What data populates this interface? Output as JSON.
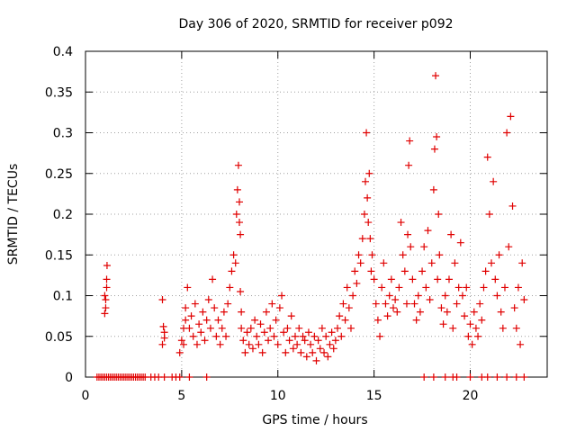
{
  "chart_data": {
    "type": "scatter",
    "title": "Day 306 of 2020, SRMTID for receiver p092",
    "xlabel": "GPS time / hours",
    "ylabel": "SRMTID / TECUs",
    "xlim": [
      0,
      24
    ],
    "ylim": [
      0,
      0.4
    ],
    "grid": true,
    "x_ticks": [
      0,
      5,
      10,
      15,
      20
    ],
    "y_ticks": [
      0,
      0.05,
      0.1,
      0.15,
      0.2,
      0.25,
      0.3,
      0.35,
      0.4
    ],
    "x_tick_labels": [
      "0",
      "5",
      "10",
      "15",
      "20"
    ],
    "y_tick_labels": [
      "0",
      "0.05",
      "0.1",
      "0.15",
      "0.2",
      "0.25",
      "0.3",
      "0.35",
      "0.4"
    ],
    "marker": "plus",
    "color": "#e00000",
    "series": [
      {
        "name": "SRMTID",
        "x": [
          1.0,
          1.05,
          1.1,
          1.12,
          1.0,
          1.05,
          1.1,
          4.0,
          4.05,
          4.1,
          4.0,
          4.1,
          4.9,
          5.0,
          5.1,
          5.2,
          5.3,
          5.1,
          5.2,
          5.4,
          5.5,
          5.6,
          5.7,
          5.8,
          5.9,
          6.0,
          6.1,
          6.2,
          6.3,
          6.4,
          6.5,
          6.6,
          6.7,
          6.8,
          6.9,
          7.0,
          7.1,
          7.2,
          7.3,
          7.4,
          7.5,
          7.6,
          7.7,
          7.8,
          7.85,
          7.9,
          7.95,
          8.0,
          8.0,
          8.05,
          8.05,
          8.1,
          8.1,
          8.2,
          8.3,
          8.4,
          8.5,
          8.6,
          8.7,
          8.8,
          8.9,
          9.0,
          9.1,
          9.2,
          9.3,
          9.4,
          9.5,
          9.6,
          9.7,
          9.8,
          9.9,
          10.0,
          10.1,
          10.2,
          10.3,
          10.4,
          10.5,
          10.6,
          10.7,
          10.8,
          10.9,
          11.0,
          11.1,
          11.2,
          11.3,
          11.4,
          11.5,
          11.6,
          11.7,
          11.8,
          11.9,
          12.0,
          12.1,
          12.2,
          12.3,
          12.4,
          12.5,
          12.6,
          12.7,
          12.8,
          12.9,
          13.0,
          13.1,
          13.2,
          13.3,
          13.4,
          13.5,
          13.6,
          13.7,
          13.8,
          13.9,
          14.0,
          14.1,
          14.2,
          14.3,
          14.4,
          14.5,
          14.55,
          14.6,
          14.65,
          14.7,
          14.75,
          14.8,
          14.85,
          14.9,
          15.0,
          15.1,
          15.2,
          15.3,
          15.4,
          15.5,
          15.6,
          15.7,
          15.8,
          15.9,
          16.0,
          16.1,
          16.2,
          16.3,
          16.4,
          16.5,
          16.6,
          16.7,
          16.75,
          16.8,
          16.85,
          16.9,
          17.0,
          17.1,
          17.2,
          17.3,
          17.4,
          17.5,
          17.6,
          17.7,
          17.8,
          17.9,
          18.0,
          18.1,
          18.15,
          18.2,
          18.25,
          18.3,
          18.35,
          18.4,
          18.5,
          18.6,
          18.7,
          18.8,
          18.9,
          19.0,
          19.1,
          19.2,
          19.3,
          19.4,
          19.5,
          19.6,
          19.7,
          19.8,
          19.9,
          20.0,
          20.1,
          20.2,
          20.3,
          20.4,
          20.5,
          20.6,
          20.7,
          20.8,
          20.9,
          21.0,
          21.1,
          21.2,
          21.3,
          21.4,
          21.5,
          21.6,
          21.7,
          21.8,
          21.9,
          22.0,
          22.1,
          22.2,
          22.3,
          22.4,
          22.5,
          22.6,
          22.7,
          22.8
        ],
        "y": [
          0.1,
          0.085,
          0.12,
          0.137,
          0.078,
          0.095,
          0.11,
          0.095,
          0.062,
          0.048,
          0.04,
          0.055,
          0.03,
          0.045,
          0.06,
          0.07,
          0.11,
          0.04,
          0.085,
          0.06,
          0.075,
          0.05,
          0.09,
          0.04,
          0.065,
          0.055,
          0.08,
          0.045,
          0.07,
          0.095,
          0.06,
          0.12,
          0.085,
          0.05,
          0.07,
          0.04,
          0.06,
          0.08,
          0.05,
          0.09,
          0.11,
          0.13,
          0.15,
          0.14,
          0.2,
          0.23,
          0.26,
          0.215,
          0.19,
          0.105,
          0.175,
          0.08,
          0.06,
          0.045,
          0.03,
          0.055,
          0.04,
          0.06,
          0.035,
          0.07,
          0.05,
          0.04,
          0.065,
          0.03,
          0.055,
          0.08,
          0.045,
          0.06,
          0.09,
          0.05,
          0.07,
          0.04,
          0.085,
          0.1,
          0.055,
          0.03,
          0.06,
          0.045,
          0.075,
          0.035,
          0.05,
          0.04,
          0.06,
          0.03,
          0.05,
          0.045,
          0.025,
          0.055,
          0.04,
          0.03,
          0.05,
          0.02,
          0.045,
          0.035,
          0.06,
          0.03,
          0.05,
          0.025,
          0.04,
          0.055,
          0.035,
          0.045,
          0.06,
          0.075,
          0.05,
          0.09,
          0.07,
          0.11,
          0.085,
          0.06,
          0.1,
          0.13,
          0.115,
          0.15,
          0.14,
          0.17,
          0.2,
          0.24,
          0.3,
          0.22,
          0.19,
          0.25,
          0.17,
          0.13,
          0.15,
          0.12,
          0.09,
          0.07,
          0.05,
          0.11,
          0.14,
          0.09,
          0.075,
          0.1,
          0.12,
          0.085,
          0.095,
          0.08,
          0.11,
          0.19,
          0.15,
          0.13,
          0.09,
          0.175,
          0.26,
          0.29,
          0.16,
          0.12,
          0.09,
          0.07,
          0.1,
          0.08,
          0.13,
          0.16,
          0.11,
          0.18,
          0.095,
          0.14,
          0.23,
          0.28,
          0.37,
          0.295,
          0.12,
          0.2,
          0.15,
          0.085,
          0.065,
          0.1,
          0.08,
          0.12,
          0.175,
          0.06,
          0.14,
          0.09,
          0.11,
          0.165,
          0.1,
          0.075,
          0.11,
          0.05,
          0.065,
          0.04,
          0.08,
          0.06,
          0.05,
          0.09,
          0.07,
          0.11,
          0.13,
          0.27,
          0.2,
          0.14,
          0.24,
          0.12,
          0.1,
          0.15,
          0.08,
          0.06,
          0.11,
          0.3,
          0.16,
          0.32,
          0.21,
          0.085,
          0.06,
          0.11,
          0.04,
          0.14,
          0.095
        ],
        "zero_flag_x": [
          0.6,
          0.7,
          0.8,
          0.9,
          1.0,
          1.1,
          1.2,
          1.3,
          1.4,
          1.5,
          1.6,
          1.7,
          1.8,
          1.9,
          2.0,
          2.1,
          2.2,
          2.3,
          2.4,
          2.5,
          2.6,
          2.7,
          2.8,
          2.9,
          3.0,
          3.1,
          3.4,
          3.6,
          3.8,
          4.1,
          4.5,
          4.7,
          4.9,
          5.4,
          6.3,
          17.6,
          18.1,
          18.7,
          19.1,
          19.3,
          20.0,
          20.6,
          20.9,
          21.4,
          21.9,
          22.4,
          22.8
        ]
      }
    ]
  }
}
